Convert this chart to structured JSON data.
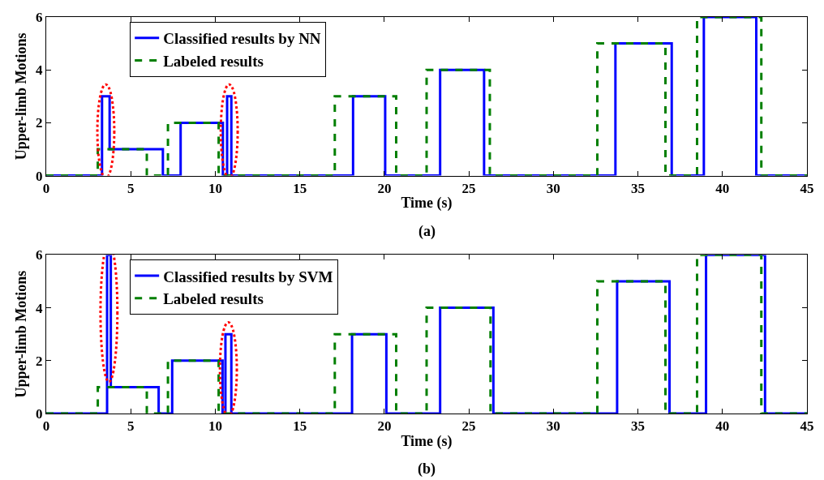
{
  "chart_data": [
    {
      "type": "step",
      "xlabel": "Time (s)",
      "ylabel": "Upper-limb Motions",
      "annotations": [
        "(a)"
      ],
      "xlim": [
        0,
        45
      ],
      "xticks": [
        0,
        5,
        10,
        15,
        20,
        25,
        30,
        35,
        40,
        45
      ],
      "ylim": [
        0,
        6
      ],
      "yticks": [
        0,
        2,
        4,
        6
      ],
      "legend": "top left",
      "series": [
        {
          "name": "Classified results by NN",
          "color": "#0000ff",
          "line_style": "solid",
          "x": [
            0,
            3.3,
            3.75,
            6.9,
            7.95,
            10.45,
            10.7,
            10.95,
            18.15,
            20.05,
            23.3,
            25.9,
            33.67,
            37.0,
            38.9,
            42.0,
            45
          ],
          "values": [
            0,
            3,
            1,
            0,
            2,
            0,
            3,
            0,
            3,
            0,
            4,
            0,
            5,
            0,
            6,
            0,
            0
          ]
        },
        {
          "name": "Labeled results",
          "color": "#007f00",
          "line_style": "dashed",
          "x": [
            0,
            3.05,
            5.95,
            7.2,
            10.2,
            17.07,
            20.7,
            22.5,
            26.24,
            32.6,
            36.63,
            38.5,
            42.3,
            45
          ],
          "values": [
            0,
            1,
            0,
            2,
            0,
            3,
            0,
            4,
            0,
            5,
            0,
            6,
            0,
            0
          ]
        }
      ]
    },
    {
      "type": "step",
      "xlabel": "Time (s)",
      "ylabel": "Upper-limb Motions",
      "annotations": [
        "(b)"
      ],
      "xlim": [
        0,
        45
      ],
      "xticks": [
        0,
        5,
        10,
        15,
        20,
        25,
        30,
        35,
        40,
        45
      ],
      "ylim": [
        0,
        6
      ],
      "yticks": [
        0,
        2,
        4,
        6
      ],
      "legend": "top left",
      "series": [
        {
          "name": "Classified results by SVM",
          "color": "#0000ff",
          "line_style": "solid",
          "x": [
            0,
            3.6,
            3.82,
            6.65,
            7.45,
            10.43,
            10.6,
            10.95,
            18.09,
            20.12,
            23.3,
            26.45,
            33.77,
            36.87,
            39.03,
            42.52,
            45
          ],
          "values": [
            0,
            6,
            1,
            0,
            2,
            0,
            3,
            0,
            3,
            0,
            4,
            0,
            5,
            0,
            6,
            0,
            0
          ]
        },
        {
          "name": "Labeled results",
          "color": "#007f00",
          "line_style": "dashed",
          "x": [
            0,
            3.05,
            5.95,
            7.2,
            10.2,
            17.07,
            20.7,
            22.5,
            26.28,
            32.6,
            36.63,
            38.5,
            42.3,
            45
          ],
          "values": [
            0,
            1,
            0,
            2,
            0,
            3,
            0,
            4,
            0,
            5,
            0,
            6,
            0,
            0
          ]
        }
      ]
    }
  ]
}
